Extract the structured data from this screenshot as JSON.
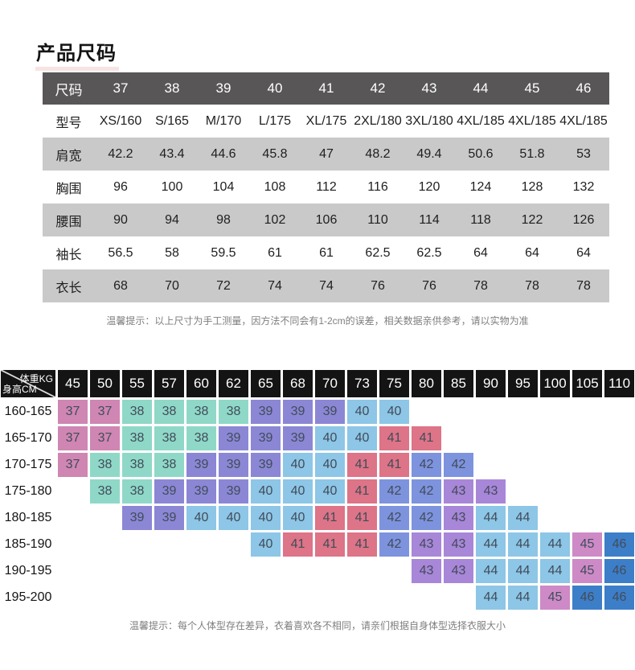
{
  "title": "产品尺码",
  "size_table": {
    "header_label": "尺码",
    "header_values": [
      "37",
      "38",
      "39",
      "40",
      "41",
      "42",
      "43",
      "44",
      "45",
      "46"
    ],
    "rows": [
      {
        "label": "型号",
        "values": [
          "XS/160",
          "S/165",
          "M/170",
          "L/175",
          "XL/175",
          "2XL/180",
          "3XL/180",
          "4XL/185",
          "4XL/185",
          "4XL/185"
        ]
      },
      {
        "label": "肩宽",
        "values": [
          "42.2",
          "43.4",
          "44.6",
          "45.8",
          "47",
          "48.2",
          "49.4",
          "50.6",
          "51.8",
          "53"
        ]
      },
      {
        "label": "胸围",
        "values": [
          "96",
          "100",
          "104",
          "108",
          "112",
          "116",
          "120",
          "124",
          "128",
          "132"
        ]
      },
      {
        "label": "腰围",
        "values": [
          "90",
          "94",
          "98",
          "102",
          "106",
          "110",
          "114",
          "118",
          "122",
          "126"
        ]
      },
      {
        "label": "袖长",
        "values": [
          "56.5",
          "58",
          "59.5",
          "61",
          "61",
          "62.5",
          "62.5",
          "64",
          "64",
          "64"
        ]
      },
      {
        "label": "衣长",
        "values": [
          "68",
          "70",
          "72",
          "74",
          "74",
          "76",
          "76",
          "78",
          "78",
          "78"
        ]
      }
    ],
    "note": "温馨提示：以上尺寸为手工测量，因方法不同会有1-2cm的误差，相关数据亲供参考，请以实物为准"
  },
  "fit_matrix": {
    "corner_top": "体重KG",
    "corner_bottom": "身高CM",
    "weights": [
      "45",
      "50",
      "55",
      "57",
      "60",
      "62",
      "65",
      "68",
      "70",
      "73",
      "75",
      "80",
      "85",
      "90",
      "95",
      "100",
      "105",
      "110"
    ],
    "rows": [
      {
        "height": "160-165",
        "cells": [
          "37",
          "37",
          "38",
          "38",
          "38",
          "38",
          "39",
          "39",
          "39",
          "40",
          "40",
          null,
          null,
          null,
          null,
          null,
          null,
          null
        ]
      },
      {
        "height": "165-170",
        "cells": [
          "37",
          "37",
          "38",
          "38",
          "38",
          "39",
          "39",
          "39",
          "40",
          "40",
          "41",
          "41",
          null,
          null,
          null,
          null,
          null,
          null
        ]
      },
      {
        "height": "170-175",
        "cells": [
          "37",
          "38",
          "38",
          "38",
          "39",
          "39",
          "39",
          "40",
          "40",
          "41",
          "41",
          "42",
          "42",
          null,
          null,
          null,
          null,
          null
        ]
      },
      {
        "height": "175-180",
        "cells": [
          null,
          "38",
          "38",
          "39",
          "39",
          "39",
          "40",
          "40",
          "40",
          "41",
          "42",
          "42",
          "43",
          "43",
          null,
          null,
          null,
          null
        ]
      },
      {
        "height": "180-185",
        "cells": [
          null,
          null,
          "39",
          "39",
          "40",
          "40",
          "40",
          "40",
          "41",
          "41",
          "42",
          "42",
          "43",
          "44",
          "44",
          null,
          null,
          null
        ]
      },
      {
        "height": "185-190",
        "cells": [
          null,
          null,
          null,
          null,
          null,
          null,
          "40",
          "41",
          "41",
          "41",
          "42",
          "43",
          "43",
          "44",
          "44",
          "44",
          "45",
          "46"
        ]
      },
      {
        "height": "190-195",
        "cells": [
          null,
          null,
          null,
          null,
          null,
          null,
          null,
          null,
          null,
          null,
          null,
          "43",
          "43",
          "44",
          "44",
          "44",
          "45",
          "46"
        ]
      },
      {
        "height": "195-200",
        "cells": [
          null,
          null,
          null,
          null,
          null,
          null,
          null,
          null,
          null,
          null,
          null,
          null,
          null,
          "44",
          "44",
          "45",
          "46",
          "46"
        ]
      }
    ],
    "size_colors": {
      "37": "#cf86b2",
      "38": "#8fd8c7",
      "39": "#8b87d5",
      "40": "#8dc6e6",
      "41": "#dd7487",
      "42": "#7e93de",
      "43": "#a886d8",
      "44": "#8dc6e6",
      "45": "#cd8ac6",
      "46": "#3d7ec8"
    },
    "note": "温馨提示：每个人体型存在差异，衣着喜欢各不相同，请亲们根据自身体型选择衣服大小"
  },
  "colors": {
    "table_header_bg": "#585656",
    "table_alt_row_bg": "#c9c9c9",
    "matrix_header_bg": "#141414",
    "matrix_cell_text": "#414c5a",
    "note_text": "#7e7e7e",
    "title_underline": "#f8e3e3"
  }
}
